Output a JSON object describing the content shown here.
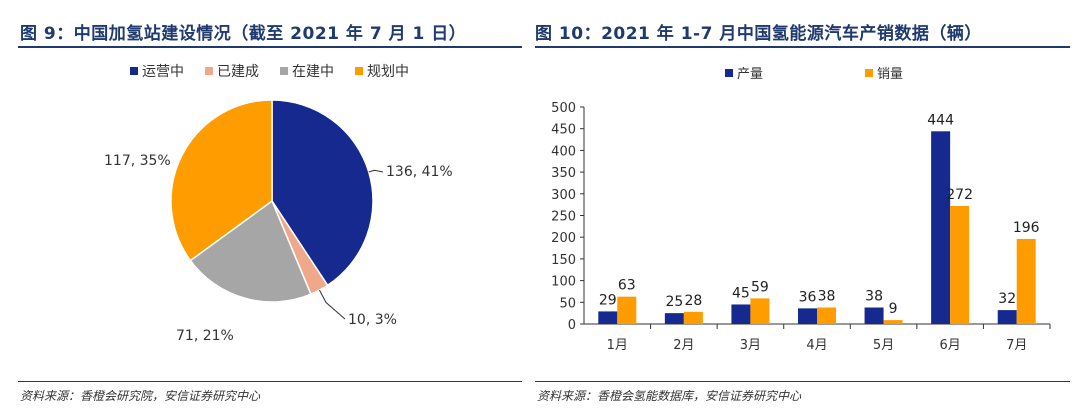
{
  "colors": {
    "title": "#1f3a6e"
  },
  "left": {
    "title": "图 9：中国加氢站建设情况（截至 2021 年 7 月 1 日）",
    "source": "资料来源：香橙会研究院，安信证券研究中心"
  },
  "right": {
    "title": "图 10：2021 年 1-7 月中国氢能源汽车产销数据（辆）",
    "source": "资料来源：香橙会氢能数据库，安信证券研究中心"
  },
  "chart_data": [
    {
      "type": "pie",
      "slices": [
        {
          "name": "运营中",
          "value": 136,
          "percent_label": "136, 41%",
          "color": "#15298f"
        },
        {
          "name": "已建成",
          "value": 10,
          "percent_label": "10, 3%",
          "color": "#f0a88a"
        },
        {
          "name": "在建中",
          "value": 71,
          "percent_label": "71, 21%",
          "color": "#a6a6a6"
        },
        {
          "name": "规划中",
          "value": 117,
          "percent_label": "117, 35%",
          "color": "#ff9c00"
        }
      ],
      "legend_position": "top"
    },
    {
      "type": "bar",
      "categories": [
        "1月",
        "2月",
        "3月",
        "4月",
        "5月",
        "6月",
        "7月"
      ],
      "series": [
        {
          "name": "产量",
          "values": [
            29,
            25,
            45,
            36,
            38,
            444,
            32
          ],
          "color": "#15298f"
        },
        {
          "name": "销量",
          "values": [
            63,
            28,
            59,
            38,
            9,
            272,
            196
          ],
          "color": "#ff9c00"
        }
      ],
      "ylim": [
        0,
        500
      ],
      "yticks": [
        0,
        50,
        100,
        150,
        200,
        250,
        300,
        350,
        400,
        450,
        500
      ],
      "grid": false,
      "legend_position": "top"
    }
  ]
}
